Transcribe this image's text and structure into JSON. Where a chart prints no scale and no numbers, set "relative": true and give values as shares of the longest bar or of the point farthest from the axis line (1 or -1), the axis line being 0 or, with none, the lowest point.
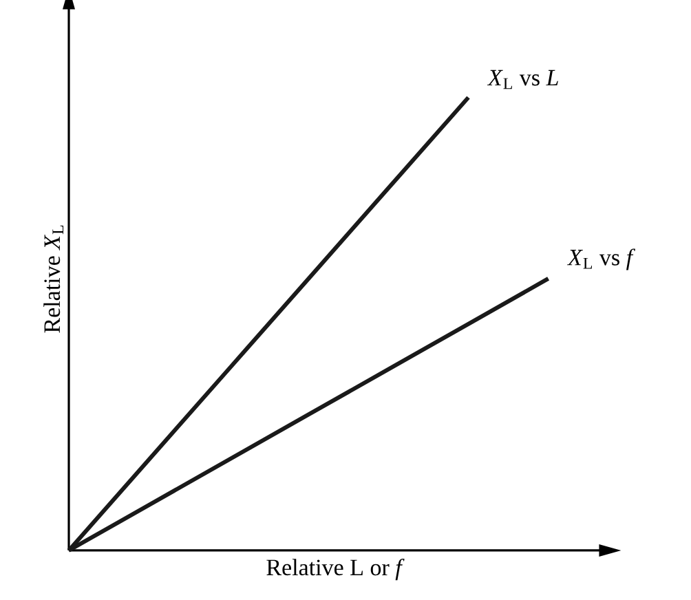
{
  "chart_data": {
    "type": "line",
    "relative": true,
    "xlabel": "Relative L or *f*",
    "ylabel": "Relative *X*$_{L}$",
    "legend": false,
    "marker": "none",
    "line_style": "solid",
    "categories": [
      null,
      null,
      null,
      null,
      null,
      null,
      null
    ],
    "series": [
      {
        "name": "*X*$_{L}$ vs *L*",
        "color": "#1a1a1a",
        "values": [
          0,
          0.2,
          0.4,
          0.6,
          0.8,
          1.0,
          null
        ]
      },
      {
        "name": "*X*$_{L}$ vs *f*",
        "color": "#1a1a1a",
        "values": [
          0,
          0.1,
          0.2,
          0.3,
          0.4,
          0.5,
          0.6
        ]
      }
    ]
  }
}
